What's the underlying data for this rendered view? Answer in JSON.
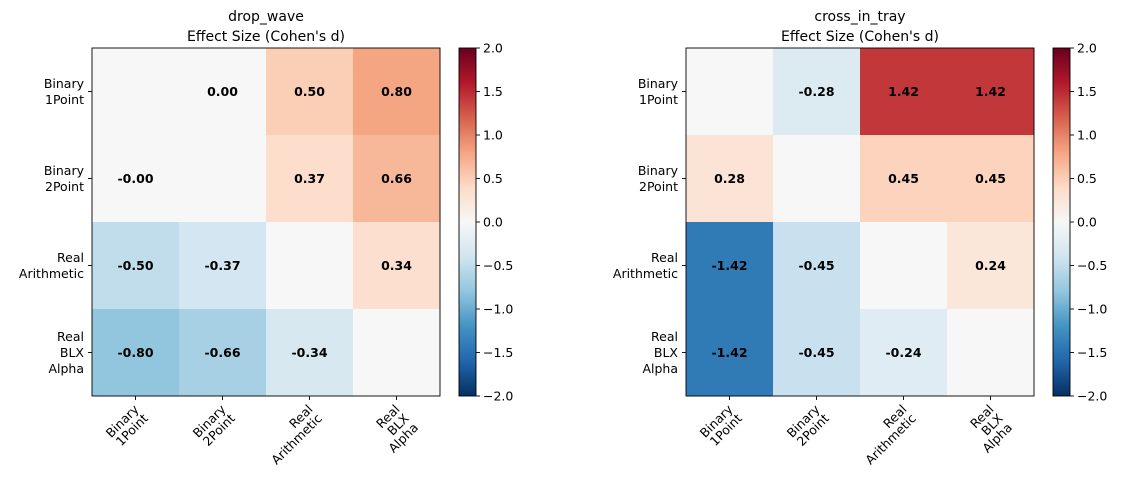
{
  "chart_data": [
    {
      "type": "heatmap",
      "title": "drop_wave",
      "subtitle": "Effect Size (Cohen's d)",
      "row_labels": [
        [
          "Binary",
          "1Point"
        ],
        [
          "Binary",
          "2Point"
        ],
        [
          "Real",
          "Arithmetic"
        ],
        [
          "Real",
          "BLX",
          "Alpha"
        ]
      ],
      "col_labels": [
        [
          "Binary",
          "1Point"
        ],
        [
          "Binary",
          "2Point"
        ],
        [
          "Real",
          "Arithmetic"
        ],
        [
          "Real",
          "BLX",
          "Alpha"
        ]
      ],
      "values": [
        [
          0.0,
          0.0,
          0.5,
          0.8
        ],
        [
          -0.0,
          0.0,
          0.37,
          0.66
        ],
        [
          -0.5,
          -0.37,
          0.0,
          0.34
        ],
        [
          -0.8,
          -0.66,
          -0.34,
          0.0
        ]
      ],
      "cell_labels": [
        [
          "",
          "0.00",
          "0.50",
          "0.80"
        ],
        [
          "-0.00",
          "",
          "0.37",
          "0.66"
        ],
        [
          "-0.50",
          "-0.37",
          "",
          "0.34"
        ],
        [
          "-0.80",
          "-0.66",
          "-0.34",
          ""
        ]
      ],
      "colorbar": {
        "min": -2.0,
        "max": 2.0,
        "colormap": "RdBu_r",
        "ticks": [
          "-2.0",
          "-1.5",
          "-1.0",
          "-0.5",
          "0.0",
          "0.5",
          "1.0",
          "1.5",
          "2.0"
        ]
      }
    },
    {
      "type": "heatmap",
      "title": "cross_in_tray",
      "subtitle": "Effect Size (Cohen's d)",
      "row_labels": [
        [
          "Binary",
          "1Point"
        ],
        [
          "Binary",
          "2Point"
        ],
        [
          "Real",
          "Arithmetic"
        ],
        [
          "Real",
          "BLX",
          "Alpha"
        ]
      ],
      "col_labels": [
        [
          "Binary",
          "1Point"
        ],
        [
          "Binary",
          "2Point"
        ],
        [
          "Real",
          "Arithmetic"
        ],
        [
          "Real",
          "BLX",
          "Alpha"
        ]
      ],
      "values": [
        [
          0.0,
          -0.28,
          1.42,
          1.42
        ],
        [
          0.28,
          0.0,
          0.45,
          0.45
        ],
        [
          -1.42,
          -0.45,
          0.0,
          0.24
        ],
        [
          -1.42,
          -0.45,
          -0.24,
          0.0
        ]
      ],
      "cell_labels": [
        [
          "",
          "-0.28",
          "1.42",
          "1.42"
        ],
        [
          "0.28",
          "",
          "0.45",
          "0.45"
        ],
        [
          "-1.42",
          "-0.45",
          "",
          "0.24"
        ],
        [
          "-1.42",
          "-0.45",
          "-0.24",
          ""
        ]
      ],
      "colorbar": {
        "min": -2.0,
        "max": 2.0,
        "colormap": "RdBu_r",
        "ticks": [
          "-2.0",
          "-1.5",
          "-1.0",
          "-0.5",
          "0.0",
          "0.5",
          "1.0",
          "1.5",
          "2.0"
        ]
      }
    }
  ]
}
